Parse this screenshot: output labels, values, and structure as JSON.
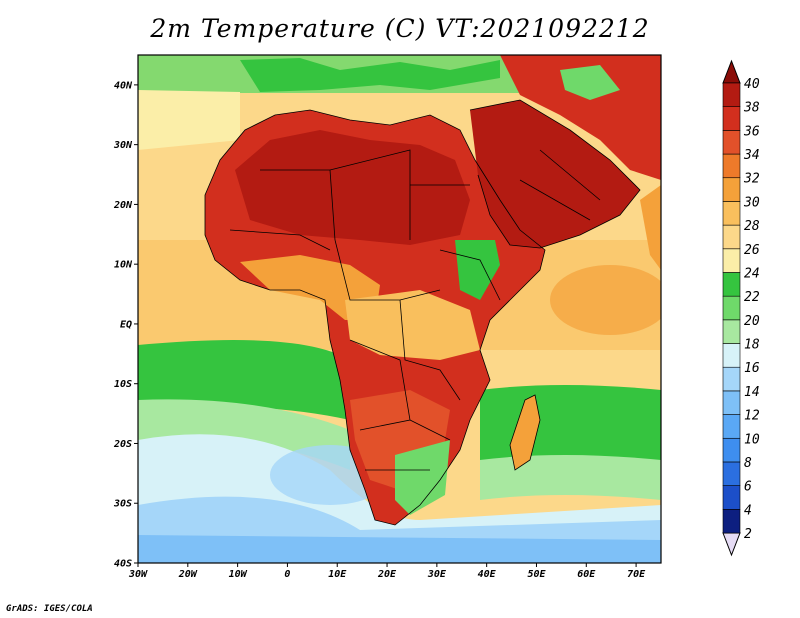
{
  "title": "2m Temperature (C) VT:2021092212",
  "credit": "GrADS: IGES/COLA",
  "map": {
    "lon_range": [
      -30,
      75
    ],
    "lat_range": [
      -40,
      45
    ],
    "lon_ticks": [
      {
        "value": -30,
        "label": "30W"
      },
      {
        "value": -20,
        "label": "20W"
      },
      {
        "value": -10,
        "label": "10W"
      },
      {
        "value": 0,
        "label": "0"
      },
      {
        "value": 10,
        "label": "10E"
      },
      {
        "value": 20,
        "label": "20E"
      },
      {
        "value": 30,
        "label": "30E"
      },
      {
        "value": 40,
        "label": "40E"
      },
      {
        "value": 50,
        "label": "50E"
      },
      {
        "value": 60,
        "label": "60E"
      },
      {
        "value": 70,
        "label": "70E"
      }
    ],
    "lat_ticks": [
      {
        "value": 40,
        "label": "40N"
      },
      {
        "value": 30,
        "label": "30N"
      },
      {
        "value": 20,
        "label": "20N"
      },
      {
        "value": 10,
        "label": "10N"
      },
      {
        "value": 0,
        "label": "EQ"
      },
      {
        "value": -10,
        "label": "10S"
      },
      {
        "value": -20,
        "label": "20S"
      },
      {
        "value": -30,
        "label": "30S"
      },
      {
        "value": -40,
        "label": "40S"
      }
    ]
  },
  "colorbar": {
    "levels": [
      "2",
      "4",
      "6",
      "8",
      "10",
      "12",
      "14",
      "16",
      "18",
      "20",
      "22",
      "24",
      "26",
      "28",
      "30",
      "32",
      "34",
      "36",
      "38",
      "40"
    ],
    "colors": [
      "#0d1f80",
      "#1c4fc9",
      "#2b6fe0",
      "#3e8eef",
      "#5aa8f5",
      "#7ec0f7",
      "#a5d6f9",
      "#d7f2f8",
      "#a8e8a0",
      "#6fd96a",
      "#35c43f",
      "#fbeea8",
      "#fcd88a",
      "#f9bf5d",
      "#f4a13a",
      "#ee7a2a",
      "#e2512a",
      "#d22f1e",
      "#b31b12",
      "#8a0d08"
    ]
  }
}
